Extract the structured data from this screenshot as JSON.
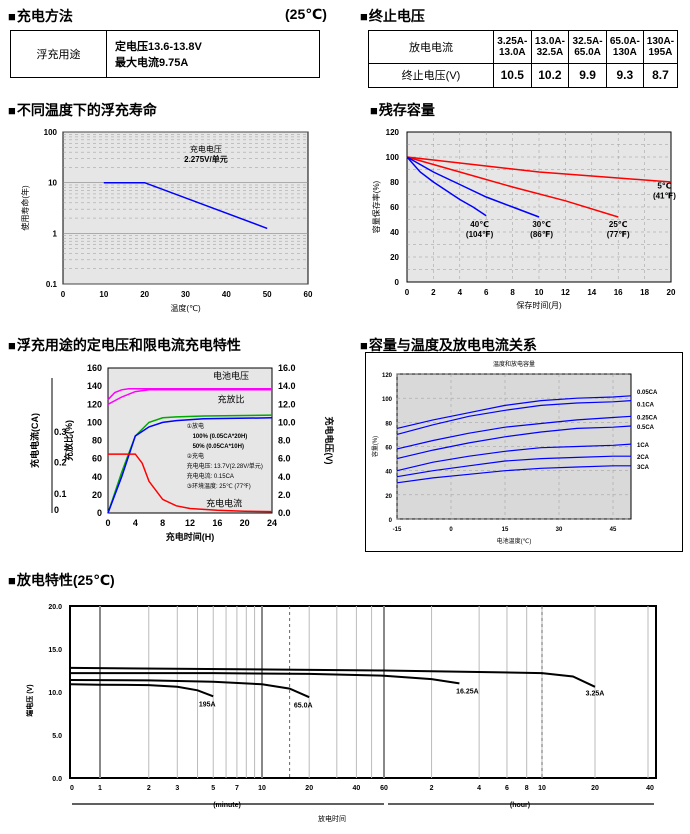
{
  "sections": {
    "charge_method": "充电方法",
    "charge_temp": "(25℃)",
    "end_voltage": "终止电压",
    "life": "不同温度下的浮充寿命",
    "residual": "残存容量",
    "float_char": "浮充用途的定电压和限电流充电特性",
    "cap_temp": "容量与温度及放电电流关系",
    "discharge": "放电特性(25℃)"
  },
  "charge_table": {
    "use": "浮充用途",
    "line1": "定电压13.6-13.8V",
    "line2": "最大电流9.75A"
  },
  "end_table": {
    "h1": "放电电流",
    "h2": "终止电压(V)",
    "ranges": [
      "3.25A-13.0A",
      "13.0A-32.5A",
      "32.5A-65.0A",
      "65.0A-130A",
      "130A-195A"
    ],
    "values": [
      "10.5",
      "10.2",
      "9.9",
      "9.3",
      "8.7"
    ]
  },
  "chart_data": [
    {
      "id": "life",
      "type": "line",
      "title": "",
      "xlabel": "温度(℃)",
      "ylabel": "使用寿命(年)",
      "xlim": [
        0,
        60
      ],
      "ylim": [
        0.1,
        100
      ],
      "yscale": "log",
      "grid": true,
      "xticks": [
        "0",
        "10",
        "20",
        "30",
        "40",
        "50",
        "60"
      ],
      "yticks": [
        "0.1",
        "1",
        "10",
        "100"
      ],
      "series": [
        {
          "x": [
            10,
            20,
            50
          ],
          "y": [
            10,
            10,
            1.25
          ],
          "color": "#0000ff"
        }
      ],
      "annotations": [
        "充电电压",
        "2.275V/单元"
      ]
    },
    {
      "id": "residual",
      "type": "line",
      "title": "",
      "xlabel": "保存时间(月)",
      "ylabel": "容量保存率(%)",
      "xlim": [
        0,
        20
      ],
      "ylim": [
        0,
        120
      ],
      "grid": true,
      "xticks": [
        "0",
        "2",
        "4",
        "6",
        "8",
        "10",
        "12",
        "14",
        "16",
        "18",
        "20"
      ],
      "yticks": [
        "0",
        "20",
        "40",
        "60",
        "80",
        "100",
        "120"
      ],
      "series": [
        {
          "name": "5℃(41℉)",
          "x": [
            0,
            5,
            10,
            15,
            20
          ],
          "y": [
            100,
            94,
            88,
            84,
            80
          ],
          "color": "#ff0000"
        },
        {
          "name": "25℃(77℉)",
          "x": [
            0,
            4,
            8,
            12,
            16
          ],
          "y": [
            100,
            88,
            76,
            65,
            52
          ],
          "color": "#ff0000"
        },
        {
          "name": "30℃(86℉)",
          "x": [
            0,
            2,
            4,
            6,
            8,
            10
          ],
          "y": [
            100,
            88,
            78,
            68,
            60,
            52
          ],
          "color": "#0000ff"
        },
        {
          "name": "40℃(104℉)",
          "x": [
            0,
            1,
            2,
            3,
            4,
            5,
            6
          ],
          "y": [
            100,
            88,
            80,
            73,
            66,
            60,
            53
          ],
          "color": "#0000ff"
        }
      ]
    },
    {
      "id": "float_char",
      "type": "line",
      "title": "",
      "xlabel": "充电时间(H)",
      "ylabel_left1": "充电电流(CA)",
      "ylabel_left2": "充放比(%)",
      "ylabel_right": "充电电压(V)",
      "xlim": [
        0,
        24
      ],
      "ylim": [
        0,
        160
      ],
      "grid": false,
      "xticks": [
        "0",
        "4",
        "8",
        "12",
        "16",
        "20",
        "24"
      ],
      "yticks": [
        "0",
        "20",
        "40",
        "60",
        "80",
        "100",
        "120",
        "140",
        "160"
      ],
      "ca_ticks": [
        "0",
        "0.1",
        "0.2",
        "0.3"
      ],
      "vticks": [
        "0.0",
        "2.0",
        "4.0",
        "6.0",
        "8.0",
        "10.0",
        "12.0",
        "14.0",
        "16.0"
      ],
      "labels": {
        "voltage": "电池电压",
        "ratio": "充放比",
        "current": "充电电流"
      },
      "legend": [
        "①放电",
        "100% (0.05CA*20H)",
        "50% (0.05CA*10H)",
        "②充电",
        "充电电压: 13.7V(2.28V/单元)",
        "充电电流: 0.15CA",
        "③环境温度: 25℃ (77℉)"
      ],
      "series": [
        {
          "name": "电池电压",
          "x": [
            0,
            2,
            4,
            6,
            8,
            12,
            16,
            20,
            24
          ],
          "y": [
            120,
            128,
            134,
            136,
            136,
            136,
            136,
            136,
            136
          ],
          "color": "#ff00ff"
        },
        {
          "name": "",
          "x": [
            0,
            1,
            2,
            3,
            4,
            6,
            24
          ],
          "y": [
            125,
            133,
            136,
            137,
            137,
            137,
            137
          ],
          "color": "#ff00ff"
        },
        {
          "name": "充放比 100%",
          "x": [
            0,
            2,
            4,
            6,
            8,
            10,
            14,
            24
          ],
          "y": [
            0,
            45,
            85,
            100,
            105,
            106,
            107,
            108
          ],
          "color": "#00aa00"
        },
        {
          "name": "充放比 50%",
          "x": [
            0,
            2,
            4,
            6,
            8,
            10,
            14,
            24
          ],
          "y": [
            0,
            40,
            85,
            95,
            100,
            102,
            104,
            105
          ],
          "color": "#0000ff"
        },
        {
          "name": "充电电流",
          "x": [
            0,
            2,
            4,
            5,
            6,
            8,
            10,
            12,
            16,
            20,
            24
          ],
          "y": [
            65,
            65,
            65,
            55,
            35,
            15,
            8,
            5,
            3,
            2,
            1.5
          ],
          "color": "#ff0000"
        }
      ]
    },
    {
      "id": "cap_temp",
      "type": "line",
      "title": "温度和放电容量",
      "xlabel": "电池温度(℃)",
      "ylabel": "容量(%)",
      "xlim": [
        -15,
        50
      ],
      "ylim": [
        0,
        120
      ],
      "grid": true,
      "xticks": [
        "-15",
        "0",
        "15",
        "30",
        "45"
      ],
      "yticks": [
        "0",
        "20",
        "40",
        "60",
        "80",
        "100",
        "120"
      ],
      "x": [
        -15,
        -5,
        5,
        15,
        25,
        35,
        45,
        50
      ],
      "series": [
        {
          "name": "0.05CA",
          "y": [
            75,
            82,
            88,
            94,
            98,
            100,
            101,
            102
          ]
        },
        {
          "name": "0.1CA",
          "y": [
            70,
            78,
            85,
            90,
            94,
            96,
            97,
            98
          ]
        },
        {
          "name": "0.25CA",
          "y": [
            58,
            65,
            71,
            76,
            79,
            82,
            84,
            85
          ]
        },
        {
          "name": "0.5CA",
          "y": [
            50,
            57,
            63,
            68,
            72,
            75,
            76,
            77
          ]
        },
        {
          "name": "1CA",
          "y": [
            40,
            47,
            52,
            56,
            59,
            60,
            61,
            62
          ]
        },
        {
          "name": "2CA",
          "y": [
            35,
            40,
            44,
            48,
            50,
            51,
            52,
            52
          ]
        },
        {
          "name": "3CA",
          "y": [
            30,
            34,
            37,
            40,
            42,
            43,
            44,
            44
          ]
        }
      ],
      "color": "#0000ff"
    },
    {
      "id": "discharge",
      "type": "line",
      "title": "",
      "ylabel": "端电压 (V)",
      "xlabel": "放电时间",
      "ylim": [
        0,
        20
      ],
      "yticks": [
        "0.0",
        "5.0",
        "10.0",
        "15.0",
        "20.0"
      ],
      "minute_ticks": [
        "0",
        "1",
        "2",
        "3",
        "5",
        "7",
        "10",
        "20",
        "40",
        "60"
      ],
      "hour_ticks": [
        "2",
        "4",
        "6",
        "8",
        "10",
        "20",
        "40"
      ],
      "unit_minute": "(minute)",
      "unit_hour": "(hour)",
      "series": [
        {
          "name": "195A",
          "t_min": [
            0,
            1,
            2,
            3,
            4,
            5
          ],
          "y": [
            10.9,
            10.85,
            10.8,
            10.6,
            10.2,
            9.5
          ]
        },
        {
          "name": "65.0A",
          "t_min": [
            0,
            2,
            5,
            10,
            15,
            20
          ],
          "y": [
            11.4,
            11.35,
            11.2,
            10.9,
            10.4,
            9.4
          ]
        },
        {
          "name": "16.25A",
          "t_min": [
            0,
            5,
            20,
            60,
            120,
            180
          ],
          "y": [
            12.2,
            12.2,
            12.1,
            11.9,
            11.5,
            11
          ]
        },
        {
          "name": "3.25A",
          "t_min": [
            0,
            60,
            300,
            600,
            900,
            1200
          ],
          "y": [
            12.8,
            12.5,
            12.3,
            12.2,
            11.8,
            10.6
          ]
        }
      ]
    }
  ]
}
